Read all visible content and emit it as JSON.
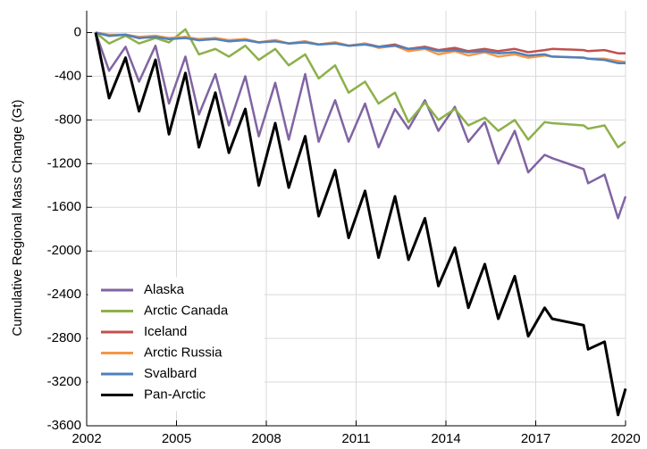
{
  "chart_data": {
    "type": "line",
    "y_label": "Cumulative Regional Mass Change (Gt)",
    "x": [
      2002.3,
      2002.75,
      2003.3,
      2003.75,
      2004.3,
      2004.75,
      2005.3,
      2005.75,
      2006.3,
      2006.75,
      2007.3,
      2007.75,
      2008.3,
      2008.75,
      2009.3,
      2009.75,
      2010.3,
      2010.75,
      2011.3,
      2011.75,
      2012.3,
      2012.75,
      2013.3,
      2013.75,
      2014.3,
      2014.75,
      2015.3,
      2015.75,
      2016.3,
      2016.75,
      2017.3,
      2017.55,
      2018.6,
      2018.75,
      2019.3,
      2019.75,
      2020.0
    ],
    "series": [
      {
        "name": "Alaska",
        "color": "#8064a2",
        "values": [
          0,
          -350,
          -130,
          -450,
          -120,
          -650,
          -220,
          -750,
          -380,
          -850,
          -400,
          -950,
          -460,
          -980,
          -380,
          -1000,
          -620,
          -1000,
          -650,
          -1050,
          -700,
          -880,
          -620,
          -900,
          -680,
          -1000,
          -820,
          -1200,
          -900,
          -1280,
          -1120,
          -1150,
          -1250,
          -1380,
          -1300,
          -1700,
          -1500
        ]
      },
      {
        "name": "Arctic Canada",
        "color": "#8db04a",
        "values": [
          0,
          -100,
          -30,
          -100,
          -50,
          -90,
          30,
          -200,
          -150,
          -220,
          -120,
          -250,
          -150,
          -300,
          -200,
          -420,
          -300,
          -550,
          -450,
          -650,
          -550,
          -820,
          -640,
          -800,
          -700,
          -850,
          -780,
          -900,
          -800,
          -980,
          -820,
          -830,
          -850,
          -880,
          -850,
          -1050,
          -1000
        ]
      },
      {
        "name": "Iceland",
        "color": "#c0504d",
        "values": [
          0,
          -30,
          -20,
          -50,
          -30,
          -60,
          -40,
          -70,
          -50,
          -80,
          -60,
          -90,
          -70,
          -100,
          -80,
          -110,
          -90,
          -120,
          -100,
          -130,
          -110,
          -150,
          -130,
          -160,
          -140,
          -170,
          -150,
          -170,
          -150,
          -180,
          -160,
          -150,
          -160,
          -170,
          -160,
          -190,
          -190
        ]
      },
      {
        "name": "Arctic Russia",
        "color": "#f79646",
        "values": [
          0,
          -20,
          -20,
          -40,
          -30,
          -50,
          -40,
          -60,
          -50,
          -70,
          -60,
          -90,
          -70,
          -100,
          -80,
          -110,
          -90,
          -120,
          -100,
          -140,
          -120,
          -170,
          -150,
          -200,
          -170,
          -210,
          -180,
          -220,
          -200,
          -230,
          -210,
          -220,
          -230,
          -240,
          -240,
          -260,
          -270
        ]
      },
      {
        "name": "Svalbard",
        "color": "#4f81bd",
        "values": [
          0,
          -30,
          -20,
          -50,
          -40,
          -60,
          -50,
          -70,
          -60,
          -80,
          -70,
          -90,
          -80,
          -100,
          -90,
          -110,
          -100,
          -120,
          -110,
          -130,
          -120,
          -150,
          -140,
          -170,
          -160,
          -180,
          -170,
          -190,
          -180,
          -210,
          -200,
          -220,
          -230,
          -240,
          -250,
          -280,
          -280
        ]
      },
      {
        "name": "Pan-Arctic",
        "color": "#000000",
        "values": [
          0,
          -600,
          -230,
          -720,
          -250,
          -930,
          -370,
          -1050,
          -550,
          -1100,
          -700,
          -1400,
          -830,
          -1420,
          -950,
          -1680,
          -1260,
          -1880,
          -1450,
          -2060,
          -1500,
          -2080,
          -1700,
          -2320,
          -1970,
          -2520,
          -2120,
          -2620,
          -2230,
          -2780,
          -2520,
          -2620,
          -2680,
          -2900,
          -2830,
          -3500,
          -3260
        ]
      }
    ],
    "xlim": [
      2002,
      2020
    ],
    "xticks": [
      2002,
      2005,
      2008,
      2011,
      2014,
      2017,
      2020
    ],
    "ylim": [
      -3600,
      200
    ],
    "yticks": [
      0,
      -400,
      -800,
      -1200,
      -1600,
      -2000,
      -2400,
      -2800,
      -3200,
      -3600
    ],
    "grid": true,
    "legend": "lower left"
  }
}
